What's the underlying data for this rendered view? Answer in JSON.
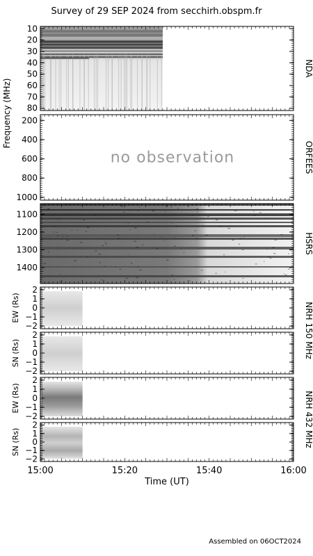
{
  "title": "Survey of 29 SEP 2024 from secchirh.obspm.fr",
  "footer": "Assembled on 06OCT2024",
  "chart_data": {
    "type": "heatmap",
    "title": "Survey of 29 SEP 2024 from secchirh.obspm.fr",
    "xlabel": "Time (UT)",
    "xlim": [
      "15:00",
      "16:00"
    ],
    "x_ticks": [
      "15:00",
      "15:20",
      "15:40",
      "16:00"
    ],
    "freq_ylabel": "Frequency (MHz)",
    "panels": [
      {
        "id": "nda",
        "instrument": "NDA",
        "ylim": [
          8,
          82
        ],
        "y_ticks": [
          "10",
          "20",
          "30",
          "40",
          "50",
          "60",
          "70",
          "80"
        ],
        "data_end": "15:29",
        "status": ""
      },
      {
        "id": "orfees",
        "instrument": "ORFEES",
        "ylim": [
          140,
          1030
        ],
        "y_ticks": [
          "200",
          "400",
          "600",
          "800",
          "1000"
        ],
        "data_end": "",
        "status": "no observation"
      },
      {
        "id": "hsrs",
        "instrument": "HSRS",
        "ylim": [
          1040,
          1490
        ],
        "y_ticks": [
          "1100",
          "1200",
          "1300",
          "1400"
        ],
        "data_end": "16:00",
        "status": ""
      },
      {
        "id": "nrh150ew",
        "ylabel": "EW (Rs)",
        "ylim": [
          -2.3,
          2.3
        ],
        "y_ticks": [
          "2",
          "1",
          "0",
          "−1",
          "−2"
        ],
        "data_end": "15:10",
        "status": ""
      },
      {
        "id": "nrh150sn",
        "ylabel": "SN (Rs)",
        "ylim": [
          -2.3,
          2.3
        ],
        "y_ticks": [
          "2",
          "1",
          "0",
          "−1",
          "−2"
        ],
        "data_end": "15:10",
        "status": ""
      },
      {
        "id": "nrh432ew",
        "ylabel": "EW (Rs)",
        "ylim": [
          -2.3,
          2.3
        ],
        "y_ticks": [
          "2",
          "1",
          "0",
          "−1",
          "−2"
        ],
        "data_end": "15:10",
        "status": ""
      },
      {
        "id": "nrh432sn",
        "ylabel": "SN (Rs)",
        "ylim": [
          -2.3,
          2.3
        ],
        "y_ticks": [
          "2",
          "1",
          "0",
          "−1",
          "−2"
        ],
        "data_end": "15:10",
        "status": ""
      }
    ],
    "nrh_labels": [
      "NRH 150 MHz",
      "NRH 432 MHz"
    ]
  }
}
